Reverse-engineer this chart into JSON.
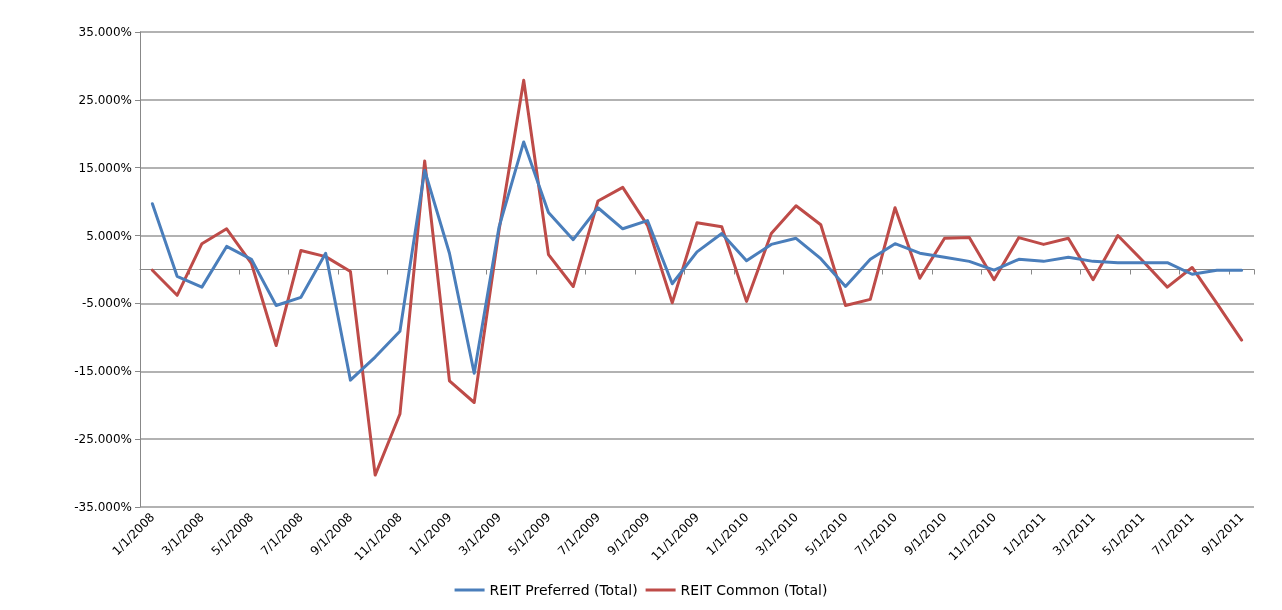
{
  "chart_data": {
    "type": "line",
    "categories": [
      "1/1/2008",
      null,
      "3/1/2008",
      null,
      "5/1/2008",
      null,
      "7/1/2008",
      null,
      "9/1/2008",
      null,
      "11/1/2008",
      null,
      "1/1/2009",
      null,
      "3/1/2009",
      null,
      "5/1/2009",
      null,
      "7/1/2009",
      null,
      "9/1/2009",
      null,
      "11/1/2009",
      null,
      "1/1/2010",
      null,
      "3/1/2010",
      null,
      "5/1/2010",
      null,
      "7/1/2010",
      null,
      "9/1/2010",
      null,
      "11/1/2010",
      null,
      "1/1/2011",
      null,
      "3/1/2011",
      null,
      "5/1/2011",
      null,
      "7/1/2011",
      null,
      "9/1/2011"
    ],
    "series": [
      {
        "name": "REIT Preferred (Total)",
        "color": "#4a7ebb",
        "values": [
          9.7,
          -1.0,
          -2.6,
          3.4,
          1.5,
          -5.3,
          -4.1,
          2.4,
          -16.3,
          -12.9,
          -9.1,
          14.6,
          2.4,
          -15.3,
          6.2,
          18.8,
          8.4,
          4.4,
          9.1,
          6.0,
          7.2,
          -2.1,
          2.6,
          5.3,
          1.3,
          3.7,
          4.6,
          1.6,
          -2.5,
          1.5,
          3.8,
          2.4,
          1.8,
          1.2,
          -0.1,
          1.5,
          1.2,
          1.8,
          1.2,
          1.0,
          1.0,
          1.0,
          -0.7,
          -0.1,
          -0.1
        ]
      },
      {
        "name": "REIT Common (Total)",
        "color": "#be4b48",
        "values": [
          -0.1,
          -3.8,
          3.8,
          6.0,
          0.9,
          -11.2,
          2.8,
          1.9,
          -0.3,
          -30.3,
          -21.3,
          16.0,
          -16.4,
          -19.6,
          5.7,
          27.9,
          2.2,
          -2.5,
          10.1,
          12.1,
          6.5,
          -4.9,
          6.9,
          6.3,
          -4.7,
          5.3,
          9.4,
          6.6,
          -5.3,
          -4.4,
          9.1,
          -1.3,
          4.6,
          4.7,
          -1.5,
          4.7,
          3.7,
          4.6,
          -1.5,
          5.0,
          1.3,
          -2.6,
          0.3,
          -5.0,
          -10.4
        ]
      }
    ],
    "ylim": [
      -35,
      35
    ],
    "yticks": [
      {
        "value": -35,
        "label": "-35.000%"
      },
      {
        "value": -25,
        "label": "-25.000%"
      },
      {
        "value": -15,
        "label": "-15.000%"
      },
      {
        "value": -5,
        "label": "-5.000%"
      },
      {
        "value": 5,
        "label": "5.000%"
      },
      {
        "value": 15,
        "label": "15.000%"
      },
      {
        "value": 25,
        "label": "25.000%"
      },
      {
        "value": 35,
        "label": "35.000%"
      }
    ],
    "grid": "y",
    "legend": "bottom",
    "marker": "none",
    "line_style": "solid"
  }
}
